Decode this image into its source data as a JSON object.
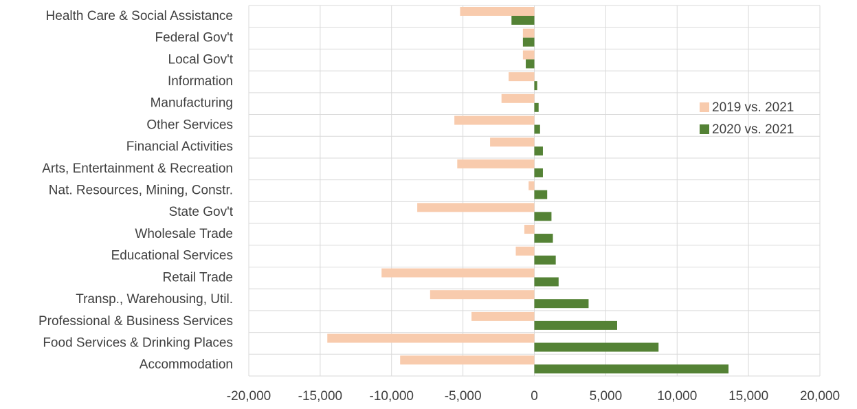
{
  "chart_data": {
    "type": "bar",
    "orientation": "horizontal",
    "categories": [
      "Health Care & Social Assistance",
      "Federal Gov't",
      "Local Gov't",
      "Information",
      "Manufacturing",
      "Other Services",
      "Financial Activities",
      "Arts, Entertainment & Recreation",
      "Nat. Resources, Mining, Constr.",
      "State Gov't",
      "Wholesale Trade",
      "Educational Services",
      "Retail Trade",
      "Transp., Warehousing, Util.",
      "Professional & Business Services",
      "Food Services & Drinking Places",
      "Accommodation"
    ],
    "series": [
      {
        "name": "2019 vs. 2021",
        "color": "#f8cbad",
        "values": [
          -5200,
          -800,
          -800,
          -1800,
          -2300,
          -5600,
          -3100,
          -5400,
          -400,
          -8200,
          -700,
          -1300,
          -10700,
          -7300,
          -4400,
          -14500,
          -9400
        ]
      },
      {
        "name": "2020 vs. 2021",
        "color": "#548235",
        "values": [
          -1600,
          -800,
          -600,
          200,
          300,
          400,
          600,
          600,
          900,
          1200,
          1300,
          1500,
          1700,
          3800,
          5800,
          8700,
          13600
        ]
      }
    ],
    "xlim": [
      -20000,
      20000
    ],
    "x_ticks": [
      -20000,
      -15000,
      -10000,
      -5000,
      0,
      5000,
      10000,
      15000,
      20000
    ],
    "x_tick_labels": [
      "-20,000",
      "-15,000",
      "-10,000",
      "-5,000",
      "0",
      "5,000",
      "10,000",
      "15,000",
      "20,000"
    ],
    "title": "",
    "xlabel": "",
    "ylabel": "",
    "grid": true,
    "legend_position": "right"
  }
}
